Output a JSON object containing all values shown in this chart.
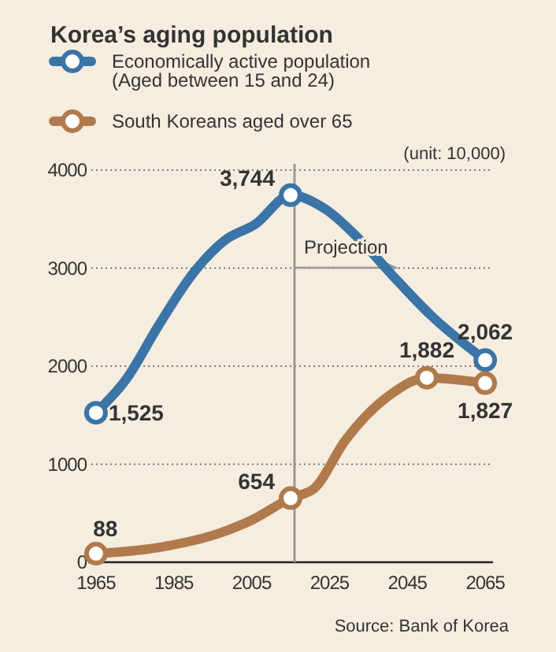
{
  "chart_data": {
    "type": "line",
    "title": "Korea’s aging population",
    "series": [
      {
        "name": "Economically active population\n(Aged between 15 and 24)",
        "color": "#3b74a6",
        "x": [
          1965,
          1973,
          1981,
          1990,
          1998,
          2006,
          2015,
          2024,
          2033,
          2042,
          2051,
          2065
        ],
        "values": [
          1525,
          1880,
          2410,
          2950,
          3280,
          3450,
          3744,
          3600,
          3280,
          2890,
          2520,
          2062
        ],
        "value_labels": [
          "1,525",
          null,
          null,
          null,
          null,
          null,
          "3,744",
          null,
          null,
          null,
          null,
          "2,062"
        ]
      },
      {
        "name": "South Koreans aged over 65",
        "color": "#b07a4c",
        "x": [
          1965,
          1981,
          1997,
          2005,
          2015,
          2021,
          2029,
          2041,
          2050,
          2065
        ],
        "values": [
          88,
          150,
          300,
          430,
          654,
          750,
          1240,
          1720,
          1882,
          1827
        ],
        "value_labels": [
          "88",
          null,
          null,
          null,
          "654",
          null,
          null,
          null,
          "1,882",
          "1,827"
        ]
      }
    ],
    "xlim": [
      1963,
      2067
    ],
    "xticks": [
      1965,
      1985,
      2005,
      2025,
      2045,
      2065
    ],
    "ylim": [
      0,
      4000
    ],
    "yticks": [
      0,
      1000,
      2000,
      3000,
      4000
    ],
    "grid": "y",
    "legend": "top left",
    "line_style": "solid",
    "ref_lines": [
      {
        "axis": "x",
        "value": 2016,
        "label": "Projection",
        "color": "#999999"
      }
    ],
    "annotations": [
      "(unit: 10,000)",
      "Source: Bank of Korea"
    ]
  }
}
